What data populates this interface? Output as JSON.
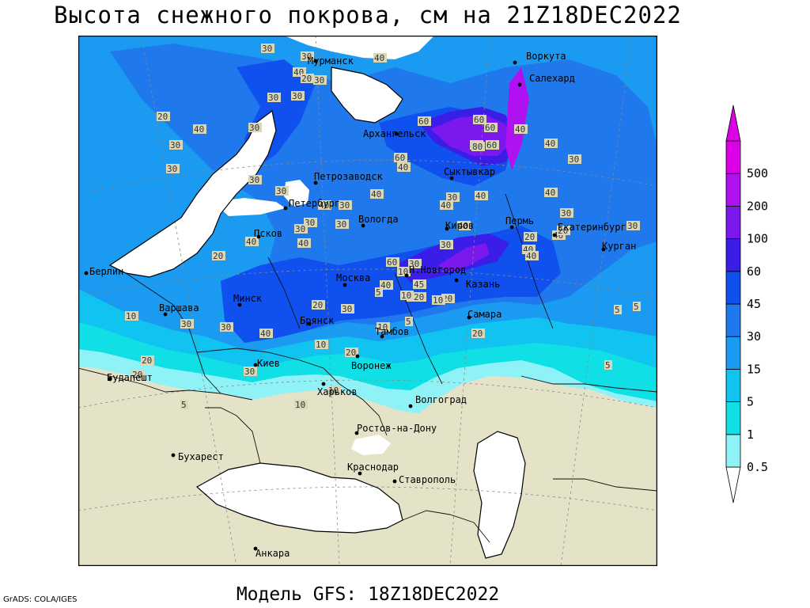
{
  "title": "Высота снежного покрова, см на 21Z18DEC2022",
  "model": "Модель GFS: 18Z18DEC2022",
  "credit": "GrADS: COLA/IGES",
  "colors": {
    "land_no_snow": "#e4e3c8",
    "water": "#ffffff",
    "class_0_5": "#8ff2f7",
    "class_1": "#10dfe6",
    "class_5": "#11c3f0",
    "class_15": "#1a9bf1",
    "class_30": "#1f78ec",
    "class_45": "#1050ee",
    "class_60": "#3a1ee8",
    "class_100": "#7b18ee",
    "class_200": "#b011f0",
    "class_500": "#dc00e8"
  },
  "legend": {
    "labels": [
      "0.5",
      "1",
      "5",
      "15",
      "30",
      "45",
      "60",
      "100",
      "200",
      "500"
    ]
  },
  "cities": [
    {
      "name": "Мурманск"
    },
    {
      "name": "Воркута"
    },
    {
      "name": "Салехард"
    },
    {
      "name": "Архангельск"
    },
    {
      "name": "Сыктывкар"
    },
    {
      "name": "Петрозаводск"
    },
    {
      "name": "Петербург"
    },
    {
      "name": "Вологда"
    },
    {
      "name": "Киров"
    },
    {
      "name": "Пермь"
    },
    {
      "name": "Екатеринбург"
    },
    {
      "name": "Курган"
    },
    {
      "name": "Псков"
    },
    {
      "name": "Берлин"
    },
    {
      "name": "Н.Новгород"
    },
    {
      "name": "Москва"
    },
    {
      "name": "Казань"
    },
    {
      "name": "Минск"
    },
    {
      "name": "Варшава"
    },
    {
      "name": "Брянск"
    },
    {
      "name": "Тамбов"
    },
    {
      "name": "Самара"
    },
    {
      "name": "Киев"
    },
    {
      "name": "Воронеж"
    },
    {
      "name": "Будапешт"
    },
    {
      "name": "Харьков"
    },
    {
      "name": "Волгоград"
    },
    {
      "name": "Ростов-на-Дону"
    },
    {
      "name": "Бухарест"
    },
    {
      "name": "Краснодар"
    },
    {
      "name": "Ставрополь"
    },
    {
      "name": "Анкара"
    }
  ],
  "contour_labels": [
    "30",
    "30",
    "40",
    "20",
    "30",
    "30",
    "30",
    "40",
    "30",
    "20",
    "30",
    "40",
    "30",
    "30",
    "30",
    "40",
    "40",
    "40",
    "30",
    "40",
    "30",
    "60",
    "60",
    "60",
    "80",
    "60",
    "40",
    "40",
    "40",
    "40",
    "30",
    "30",
    "30",
    "20",
    "40",
    "30",
    "40",
    "30",
    "40",
    "40",
    "40",
    "60",
    "30",
    "20",
    "10",
    "10",
    "20",
    "20",
    "30",
    "30",
    "40",
    "10",
    "10",
    "20",
    "5",
    "20",
    "30",
    "40",
    "45",
    "80",
    "60",
    "30",
    "40",
    "20",
    "20",
    "30",
    "5",
    "5",
    "5",
    "5",
    "10",
    "20",
    "30",
    "10",
    "10",
    "20",
    "20",
    "10",
    "5"
  ]
}
